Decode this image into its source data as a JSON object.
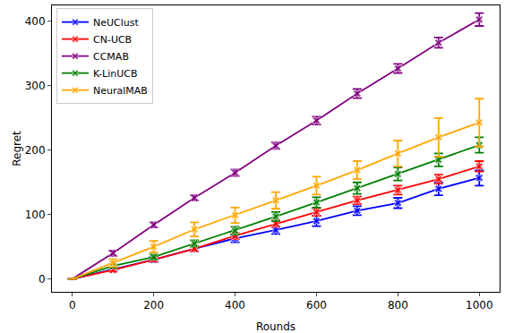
{
  "chart_data": {
    "type": "line",
    "x_label": "Rounds",
    "y_label": "Regret",
    "x": [
      0,
      100,
      200,
      300,
      400,
      500,
      600,
      700,
      800,
      900,
      1000
    ],
    "series": [
      {
        "name": "NeUClust",
        "color": "#0000ff",
        "marker": "x",
        "values": [
          0,
          15,
          30,
          47,
          63,
          76,
          90,
          106,
          118,
          140,
          157
        ],
        "errors": [
          null,
          3,
          4,
          4,
          6,
          6,
          8,
          7,
          8,
          10,
          12
        ]
      },
      {
        "name": "CN-UCB",
        "color": "#ff0000",
        "marker": "x",
        "values": [
          0,
          14,
          30,
          47,
          67,
          86,
          104,
          122,
          138,
          155,
          175
        ],
        "errors": [
          null,
          3,
          3,
          4,
          5,
          5,
          6,
          6,
          7,
          7,
          8
        ]
      },
      {
        "name": "CCMAB",
        "color": "#800080",
        "marker": "x",
        "values": [
          0,
          40,
          84,
          126,
          165,
          207,
          246,
          288,
          327,
          367,
          403
        ],
        "errors": [
          null,
          4,
          4,
          4,
          5,
          5,
          6,
          7,
          7,
          8,
          10
        ]
      },
      {
        "name": "K-LinUCB",
        "color": "#008000",
        "marker": "x",
        "values": [
          0,
          20,
          34,
          55,
          75,
          97,
          119,
          141,
          163,
          185,
          208
        ],
        "errors": [
          null,
          3,
          4,
          5,
          6,
          7,
          8,
          9,
          10,
          10,
          12
        ]
      },
      {
        "name": "NeuralMAB",
        "color": "#ffa500",
        "marker": "x",
        "values": [
          0,
          25,
          50,
          77,
          99,
          122,
          145,
          169,
          195,
          220,
          243
        ],
        "errors": [
          null,
          6,
          9,
          11,
          12,
          13,
          14,
          14,
          20,
          30,
          37
        ]
      }
    ],
    "xlim": [
      -50,
      1050
    ],
    "xticks": [
      0,
      200,
      400,
      600,
      800,
      1000
    ],
    "ylim": [
      -20,
      425
    ],
    "yticks": [
      0,
      100,
      200,
      300,
      400
    ],
    "grid": false,
    "legend": "upper left"
  }
}
